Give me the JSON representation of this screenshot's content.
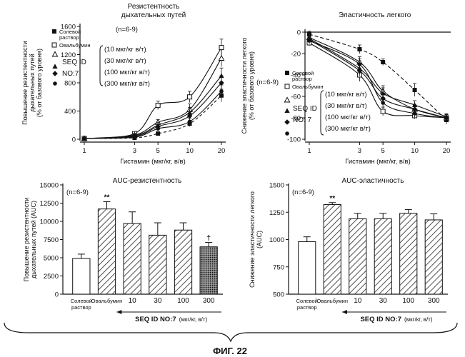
{
  "figure_caption": "ФИГ. 22",
  "chart_data": [
    {
      "id": "resistance",
      "type": "line",
      "title": "Резистентность дыхательных путей",
      "title_lines": [
        "Резистентность",
        "дыхательных путей"
      ],
      "n_label": "(n=6-9)",
      "xlabel": "Гистамин (мкг/кг, в/в)",
      "ylabel": "Повышение резистентности дыхательных путей (% от базового уровня)",
      "ylabel_lines": [
        "Повышение резистентности",
        "дыхательных путей",
        "(% от базового уровня)"
      ],
      "xscale": "log",
      "x": [
        1,
        3,
        5,
        10,
        20
      ],
      "xticks": [
        "1",
        "3",
        "5",
        "10",
        "20"
      ],
      "yticks": [
        "0",
        "400",
        "800",
        "1200",
        "1600"
      ],
      "ylim": [
        0,
        1600
      ],
      "legend": {
        "saline": "Солевой раствор",
        "saline_lines": [
          "Солевой",
          "раствор"
        ],
        "ova": "Овальбумин",
        "compound_lines": [
          "SEQ ID",
          "NO:7"
        ],
        "doses": [
          "(10 мкг/кг в/т)",
          "(30 мкг/кг в/т)",
          "(100 мкг/кг в/т)",
          "(300 мкг/кг в/т)"
        ]
      },
      "series": [
        {
          "name": "Солевой раствор",
          "marker": "square",
          "dash": "4,3",
          "values": [
            10,
            20,
            80,
            220,
            620
          ],
          "err": [
            5,
            10,
            25,
            40,
            90
          ]
        },
        {
          "name": "Овальбумин",
          "marker": "square-open",
          "dash": "",
          "values": [
            10,
            80,
            480,
            600,
            1300
          ],
          "err": [
            5,
            20,
            60,
            80,
            120
          ]
        },
        {
          "name": "10 мкг/кг в/т",
          "marker": "triangle-open",
          "dash": "",
          "values": [
            10,
            60,
            240,
            420,
            1150
          ],
          "err": [
            5,
            20,
            40,
            80,
            120
          ]
        },
        {
          "name": "30 мкг/кг в/т",
          "marker": "triangle",
          "dash": "",
          "values": [
            10,
            50,
            200,
            380,
            900
          ],
          "err": [
            5,
            20,
            40,
            70,
            110
          ]
        },
        {
          "name": "100 мкг/кг в/т",
          "marker": "diamond",
          "dash": "",
          "values": [
            10,
            40,
            180,
            330,
            800
          ],
          "err": [
            5,
            15,
            35,
            60,
            100
          ]
        },
        {
          "name": "300 мкг/кг в/т",
          "marker": "circle",
          "dash": "",
          "values": [
            10,
            30,
            150,
            250,
            680
          ],
          "err": [
            5,
            10,
            30,
            50,
            90
          ]
        }
      ]
    },
    {
      "id": "elasticity",
      "type": "line",
      "title": "Эластичность легкого",
      "xlabel": "Гистамин (мкг/кг, в/в)",
      "ylabel": "Снижение эластичности легкого (% от базового уровня)",
      "ylabel_lines": [
        "Снижение эластичности легкого",
        "(% от базового уровня)"
      ],
      "xscale": "log",
      "x": [
        1,
        3,
        5,
        10,
        20
      ],
      "xticks": [
        "1",
        "3",
        "5",
        "10",
        "20"
      ],
      "yticks": [
        "0",
        "-20",
        "-40",
        "-60",
        "-80",
        "-100"
      ],
      "ylim": [
        -100,
        0
      ],
      "legend": {
        "saline": "Солевой раствор",
        "saline_lines": [
          "Солевой",
          "раствор"
        ],
        "ova": "Овальбумин",
        "n_label": "(n=6-9)",
        "compound_lines": [
          "SEQ ID",
          "NO: 7"
        ],
        "doses": [
          "(10 мкг/кг в/т)",
          "(30 мкг/кг в/т)",
          "(100 мкг/кг в/т)",
          "(300 мкг/кг в/т)"
        ]
      },
      "series": [
        {
          "name": "Солевой раствор",
          "marker": "square",
          "dash": "5,3",
          "values": [
            -2,
            -16,
            -28,
            -54,
            -82
          ],
          "err": [
            3,
            4,
            3,
            6,
            4
          ]
        },
        {
          "name": "Овальбумин",
          "marker": "square-open",
          "dash": "",
          "values": [
            -10,
            -40,
            -74,
            -78,
            -80
          ],
          "err": [
            3,
            6,
            4,
            3,
            3
          ]
        },
        {
          "name": "10 мкг/кг в/т",
          "marker": "triangle-open",
          "dash": "",
          "values": [
            -5,
            -28,
            -55,
            -72,
            -80
          ],
          "err": [
            3,
            5,
            5,
            4,
            3
          ]
        },
        {
          "name": "30 мкг/кг в/т",
          "marker": "triangle",
          "dash": "",
          "values": [
            -6,
            -34,
            -57,
            -68,
            -79
          ],
          "err": [
            3,
            5,
            5,
            4,
            3
          ]
        },
        {
          "name": "100 мкг/кг в/т",
          "marker": "diamond",
          "dash": "",
          "values": [
            -7,
            -36,
            -62,
            -72,
            -80
          ],
          "err": [
            3,
            5,
            5,
            4,
            3
          ]
        },
        {
          "name": "300 мкг/кг в/т",
          "marker": "circle",
          "dash": "",
          "values": [
            -8,
            -30,
            -66,
            -76,
            -80
          ],
          "err": [
            3,
            5,
            5,
            4,
            3
          ]
        }
      ]
    },
    {
      "id": "auc-resistance",
      "type": "bar",
      "title": "AUC-резистентность",
      "n_label": "(n=6-9)",
      "ylabel": "Повышение резистентности дыхательных путей (AUC)",
      "ylabel_lines": [
        "Повышение резистентности",
        "дыхательных путей (AUC)"
      ],
      "categories": [
        "Солевой раствор",
        "Овальбумин",
        "10",
        "30",
        "100",
        "300"
      ],
      "cat_labels": [
        [
          "Солевой",
          "раствор"
        ],
        [
          "Овальбумин"
        ],
        [
          "10"
        ],
        [
          "30"
        ],
        [
          "100"
        ],
        [
          "300"
        ]
      ],
      "values": [
        4900,
        11700,
        9700,
        8100,
        8800,
        6500
      ],
      "err": [
        600,
        1000,
        1600,
        1700,
        1000,
        600
      ],
      "fills": [
        "white",
        "hatch",
        "hatch",
        "hatch",
        "hatch",
        "dots"
      ],
      "marks": [
        "",
        "**",
        "",
        "",
        "",
        "†"
      ],
      "yticks": [
        "0",
        "2500",
        "5000",
        "7500",
        "10000",
        "12500",
        "15000"
      ],
      "ylim": [
        0,
        15000
      ],
      "group_label": "SEQ ID NO:7",
      "group_unit": "(мкг/кг, в/т)"
    },
    {
      "id": "auc-elasticity",
      "type": "bar",
      "title": "AUC-эластичность",
      "n_label": "(n=6-9)",
      "ylabel": "Снижение эластичности легкого (AUC)",
      "ylabel_lines": [
        "Снижение эластичности легкого",
        "(AUC)"
      ],
      "categories": [
        "Солевой раствор",
        "Овальбумин",
        "10",
        "30",
        "100",
        "300"
      ],
      "cat_labels": [
        [
          "Солевой",
          "раствор"
        ],
        [
          "Овальбумин"
        ],
        [
          "10"
        ],
        [
          "30"
        ],
        [
          "100"
        ],
        [
          "300"
        ]
      ],
      "values": [
        980,
        1320,
        1190,
        1190,
        1240,
        1180
      ],
      "err": [
        45,
        18,
        50,
        50,
        35,
        55
      ],
      "fills": [
        "white",
        "hatch",
        "hatch",
        "hatch",
        "hatch",
        "hatch"
      ],
      "marks": [
        "",
        "**",
        "",
        "",
        "",
        ""
      ],
      "yticks": [
        "500",
        "750",
        "1000",
        "1250",
        "1500"
      ],
      "ylim": [
        500,
        1500
      ],
      "group_label": "SEQ ID NO:7",
      "group_unit": "(мкг/кг, в/т)"
    }
  ]
}
